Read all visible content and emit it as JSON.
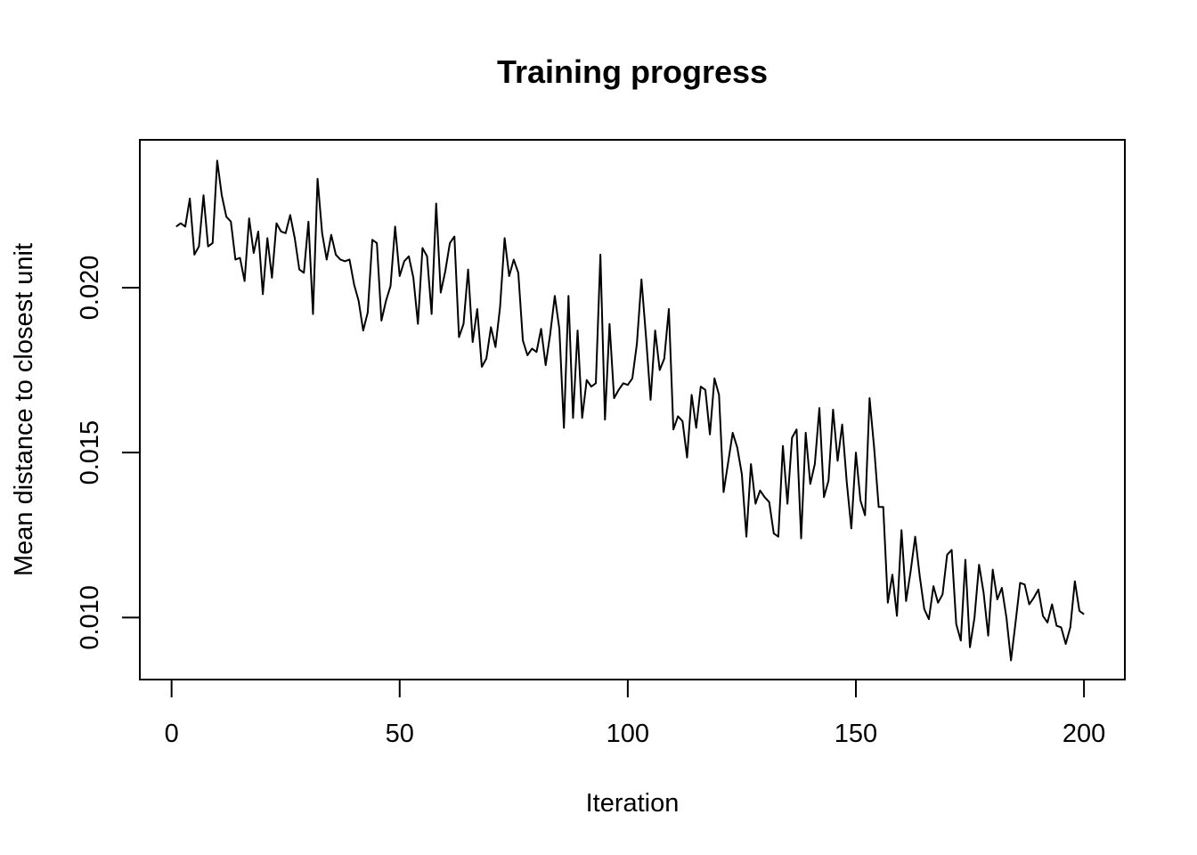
{
  "chart_data": {
    "type": "line",
    "title": "Training progress",
    "xlabel": "Iteration",
    "ylabel": "Mean distance to closest unit",
    "xlim": [
      -6.96,
      208.96
    ],
    "ylim": [
      0.00812,
      0.02448
    ],
    "x_ticks": [
      0,
      50,
      100,
      150,
      200
    ],
    "x_tick_labels": [
      "0",
      "50",
      "100",
      "150",
      "200"
    ],
    "y_ticks": [
      0.01,
      0.015,
      0.02
    ],
    "y_tick_labels": [
      "0.010",
      "0.015",
      "0.020"
    ],
    "grid": false,
    "legend": "none",
    "line_color": "#000000",
    "series": [
      {
        "x": [
          1,
          2,
          3,
          4,
          5,
          6,
          7,
          8,
          9,
          10,
          11,
          12,
          13,
          14,
          15,
          16,
          17,
          18,
          19,
          20,
          21,
          22,
          23,
          24,
          25,
          26,
          27,
          28,
          29,
          30,
          31,
          32,
          33,
          34,
          35,
          36,
          37,
          38,
          39,
          40,
          41,
          42,
          43,
          44,
          45,
          46,
          47,
          48,
          49,
          50,
          51,
          52,
          53,
          54,
          55,
          56,
          57,
          58,
          59,
          60,
          61,
          62,
          63,
          64,
          65,
          66,
          67,
          68,
          69,
          70,
          71,
          72,
          73,
          74,
          75,
          76,
          77,
          78,
          79,
          80,
          81,
          82,
          83,
          84,
          85,
          86,
          87,
          88,
          89,
          90,
          91,
          92,
          93,
          94,
          95,
          96,
          97,
          98,
          99,
          100,
          101,
          102,
          103,
          104,
          105,
          106,
          107,
          108,
          109,
          110,
          111,
          112,
          113,
          114,
          115,
          116,
          117,
          118,
          119,
          120,
          121,
          122,
          123,
          124,
          125,
          126,
          127,
          128,
          129,
          130,
          131,
          132,
          133,
          134,
          135,
          136,
          137,
          138,
          139,
          140,
          141,
          142,
          143,
          144,
          145,
          146,
          147,
          148,
          149,
          150,
          151,
          152,
          153,
          154,
          155,
          156,
          157,
          158,
          159,
          160,
          161,
          162,
          163,
          164,
          165,
          166,
          167,
          168,
          169,
          170,
          171,
          172,
          173,
          174,
          175,
          176,
          177,
          178,
          179,
          180,
          181,
          182,
          183,
          184,
          185,
          186,
          187,
          188,
          189,
          190,
          191,
          192,
          193,
          194,
          195,
          196,
          197,
          198,
          199,
          200
        ],
        "values": [
          0.02185,
          0.02195,
          0.02185,
          0.0227,
          0.021,
          0.02125,
          0.0228,
          0.02125,
          0.02135,
          0.02385,
          0.0228,
          0.02215,
          0.022,
          0.02085,
          0.0209,
          0.0202,
          0.0221,
          0.02105,
          0.0217,
          0.0198,
          0.0215,
          0.0203,
          0.02195,
          0.0217,
          0.02165,
          0.0222,
          0.0215,
          0.02055,
          0.02045,
          0.022,
          0.0192,
          0.0233,
          0.02165,
          0.02085,
          0.0216,
          0.021,
          0.02085,
          0.0208,
          0.02085,
          0.0201,
          0.0196,
          0.0187,
          0.01925,
          0.02145,
          0.02135,
          0.019,
          0.0196,
          0.02005,
          0.02185,
          0.02035,
          0.0208,
          0.02095,
          0.0203,
          0.0189,
          0.0212,
          0.02095,
          0.0192,
          0.02255,
          0.01985,
          0.0205,
          0.02135,
          0.02155,
          0.0185,
          0.0189,
          0.02055,
          0.01835,
          0.01935,
          0.0176,
          0.01785,
          0.0188,
          0.0182,
          0.0194,
          0.0215,
          0.02035,
          0.02085,
          0.02045,
          0.0184,
          0.01795,
          0.01815,
          0.01805,
          0.01875,
          0.01765,
          0.0186,
          0.01975,
          0.01875,
          0.01575,
          0.01975,
          0.01605,
          0.0187,
          0.01605,
          0.0172,
          0.017,
          0.0171,
          0.021,
          0.016,
          0.0189,
          0.01665,
          0.0169,
          0.0171,
          0.01705,
          0.01725,
          0.0183,
          0.02025,
          0.0185,
          0.0166,
          0.0187,
          0.0175,
          0.01785,
          0.01935,
          0.0157,
          0.0161,
          0.01595,
          0.01485,
          0.01675,
          0.01575,
          0.017,
          0.0169,
          0.01555,
          0.01725,
          0.01675,
          0.0138,
          0.0147,
          0.0156,
          0.01515,
          0.01435,
          0.01245,
          0.01465,
          0.01345,
          0.01385,
          0.01365,
          0.0135,
          0.01255,
          0.01245,
          0.0152,
          0.01345,
          0.01545,
          0.0157,
          0.0124,
          0.0156,
          0.01405,
          0.01465,
          0.01635,
          0.01365,
          0.01415,
          0.0163,
          0.01475,
          0.01585,
          0.0141,
          0.0127,
          0.015,
          0.01355,
          0.0131,
          0.01665,
          0.01515,
          0.01335,
          0.01335,
          0.01045,
          0.0113,
          0.01005,
          0.01265,
          0.0105,
          0.0114,
          0.01245,
          0.01125,
          0.01025,
          0.00995,
          0.01095,
          0.01045,
          0.0107,
          0.0119,
          0.01205,
          0.0098,
          0.0093,
          0.01175,
          0.0091,
          0.01,
          0.0116,
          0.01075,
          0.00945,
          0.01145,
          0.01055,
          0.0109,
          0.01,
          0.0087,
          0.00985,
          0.01105,
          0.011,
          0.0104,
          0.0106,
          0.01085,
          0.01005,
          0.00985,
          0.0104,
          0.00975,
          0.0097,
          0.0092,
          0.0097,
          0.0111,
          0.0102,
          0.0101
        ]
      }
    ]
  }
}
